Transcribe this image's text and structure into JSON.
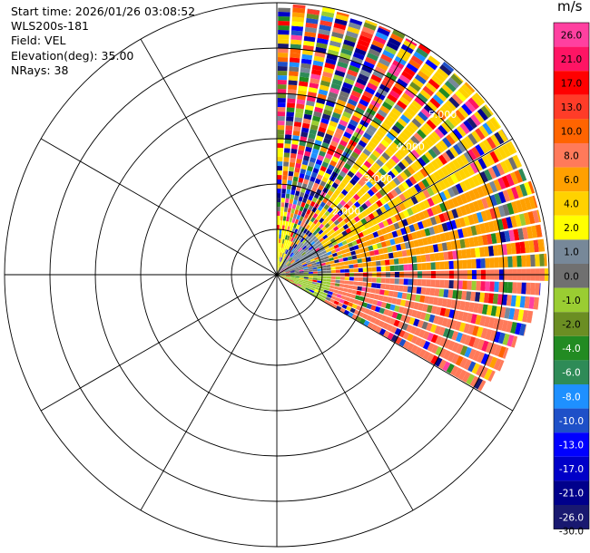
{
  "header": {
    "start_time": "Start time: 2026/01/26 03:08:52",
    "site": "WLS200s-181",
    "field": "Field: VEL",
    "elevation": "Elevation(deg): 35.00",
    "nrays": "NRays: 38"
  },
  "colorbar": {
    "unit": "m/s",
    "bins": [
      {
        "label": "26.0",
        "color": "#ff40a0"
      },
      {
        "label": "21.0",
        "color": "#ff1464"
      },
      {
        "label": "17.0",
        "color": "#ff0000"
      },
      {
        "label": "13.0",
        "color": "#ff3c28"
      },
      {
        "label": "10.0",
        "color": "#ff6400"
      },
      {
        "label": "8.0",
        "color": "#ff7a5a"
      },
      {
        "label": "6.0",
        "color": "#ffa000"
      },
      {
        "label": "4.0",
        "color": "#ffd200"
      },
      {
        "label": "2.0",
        "color": "#ffff00"
      },
      {
        "label": "1.0",
        "color": "#778899"
      },
      {
        "label": "0.0",
        "color": "#707070"
      },
      {
        "label": "-1.0",
        "color": "#9acd32"
      },
      {
        "label": "-2.0",
        "color": "#6b8e23"
      },
      {
        "label": "-4.0",
        "color": "#228b22"
      },
      {
        "label": "-6.0",
        "color": "#2e8b57"
      },
      {
        "label": "-8.0",
        "color": "#1e90ff"
      },
      {
        "label": "-10.0",
        "color": "#1e50c8"
      },
      {
        "label": "-13.0",
        "color": "#0000ff"
      },
      {
        "label": "-17.0",
        "color": "#0000c8"
      },
      {
        "label": "-21.0",
        "color": "#00008b"
      },
      {
        "label": "-26.0",
        "color": "#191970"
      },
      {
        "label": "-30.0",
        "color": ""
      }
    ]
  },
  "chart_data": {
    "type": "heatmap",
    "projection": "polar-ppi",
    "field": "VEL",
    "units": "m/s",
    "nrays": 38,
    "azimuth_range_deg": [
      0,
      120
    ],
    "rings": 6,
    "ring_labels": [
      {
        "ring": 2,
        "label": "2.000"
      },
      {
        "ring": 3,
        "label": "3.000"
      },
      {
        "ring": 4,
        "label": "4.000"
      },
      {
        "ring": 5,
        "label": "5.000"
      }
    ],
    "spokes_every_deg": 30,
    "sectors": [
      {
        "az_from": 0,
        "az_to": 25,
        "ring_from": 0,
        "ring_to": 1.2,
        "dominant": "2.0"
      },
      {
        "az_from": 25,
        "az_to": 70,
        "ring_from": 0,
        "ring_to": 1.2,
        "dominant": "1.0"
      },
      {
        "az_from": 70,
        "az_to": 90,
        "ring_from": 0,
        "ring_to": 1.2,
        "dominant": "0.0"
      },
      {
        "az_from": 90,
        "az_to": 120,
        "ring_from": 0,
        "ring_to": 1.2,
        "dominant": "-1.0"
      },
      {
        "az_from": 0,
        "az_to": 35,
        "ring_from": 1.2,
        "ring_to": 6,
        "dominant": "mixed"
      },
      {
        "az_from": 35,
        "az_to": 65,
        "ring_from": 1.2,
        "ring_to": 6,
        "dominant": "4.0"
      },
      {
        "az_from": 65,
        "az_to": 90,
        "ring_from": 1.2,
        "ring_to": 6,
        "dominant": "6.0"
      },
      {
        "az_from": 90,
        "az_to": 120,
        "ring_from": 1.2,
        "ring_to": 6,
        "dominant": "8.0"
      }
    ]
  }
}
